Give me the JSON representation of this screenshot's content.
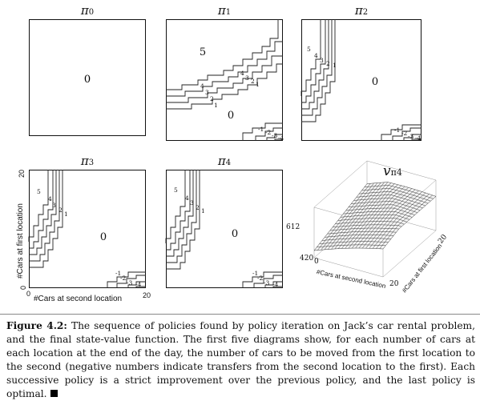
{
  "panels": [
    {
      "id": "pi0",
      "title": "π",
      "subscript": "0",
      "zero_label": "0"
    },
    {
      "id": "pi1",
      "title": "π",
      "subscript": "1",
      "zero_label": "0",
      "upper_label": "5",
      "upper_steps": [
        "4",
        "3",
        "2",
        "1"
      ],
      "lower_steps": [
        "-1",
        "-2",
        "-3",
        "-4"
      ],
      "left_steps": [
        "4",
        "3",
        "2",
        "1"
      ]
    },
    {
      "id": "pi2",
      "title": "π",
      "subscript": "2",
      "zero_label": "0",
      "upper_steps": [
        "5",
        "4",
        "3",
        "2",
        "1"
      ],
      "lower_steps": [
        "-1",
        "-2",
        "-3",
        "-4"
      ]
    },
    {
      "id": "pi3",
      "title": "π",
      "subscript": "3",
      "zero_label": "0",
      "upper_steps": [
        "5",
        "4",
        "3",
        "2",
        "1"
      ],
      "lower_steps": [
        "-1",
        "-2",
        "-3",
        "-4"
      ]
    },
    {
      "id": "pi4",
      "title": "π",
      "subscript": "4",
      "zero_label": "0",
      "upper_steps": [
        "5",
        "4",
        "3",
        "2",
        "1"
      ],
      "lower_steps": [
        "-1",
        "-2",
        "-3",
        "-4"
      ]
    }
  ],
  "axes": {
    "y_label": "#Cars at first location",
    "x_label": "#Cars at second location",
    "y_max": "20",
    "y_min": "0",
    "x_min": "0",
    "x_max": "20"
  },
  "surface": {
    "title": "v",
    "title_sub": "π4",
    "z_high": "612",
    "z_low": "420",
    "x_axis_label": "#Cars at second location",
    "y_axis_label": "#Cars at first location",
    "x_min": "0",
    "x_max": "20",
    "y_max": "20"
  },
  "caption": {
    "label": "Figure 4.2:",
    "text": "The sequence of policies found by policy iteration on Jack’s car rental problem, and the final state-value function. The first five diagrams show, for each number of cars at each location at the end of the day, the number of cars to be moved from the first location to the second (negative numbers indicate transfers from the second location to the first). Each successive policy is a strict improvement over the previous policy, and the last policy is optimal."
  }
}
